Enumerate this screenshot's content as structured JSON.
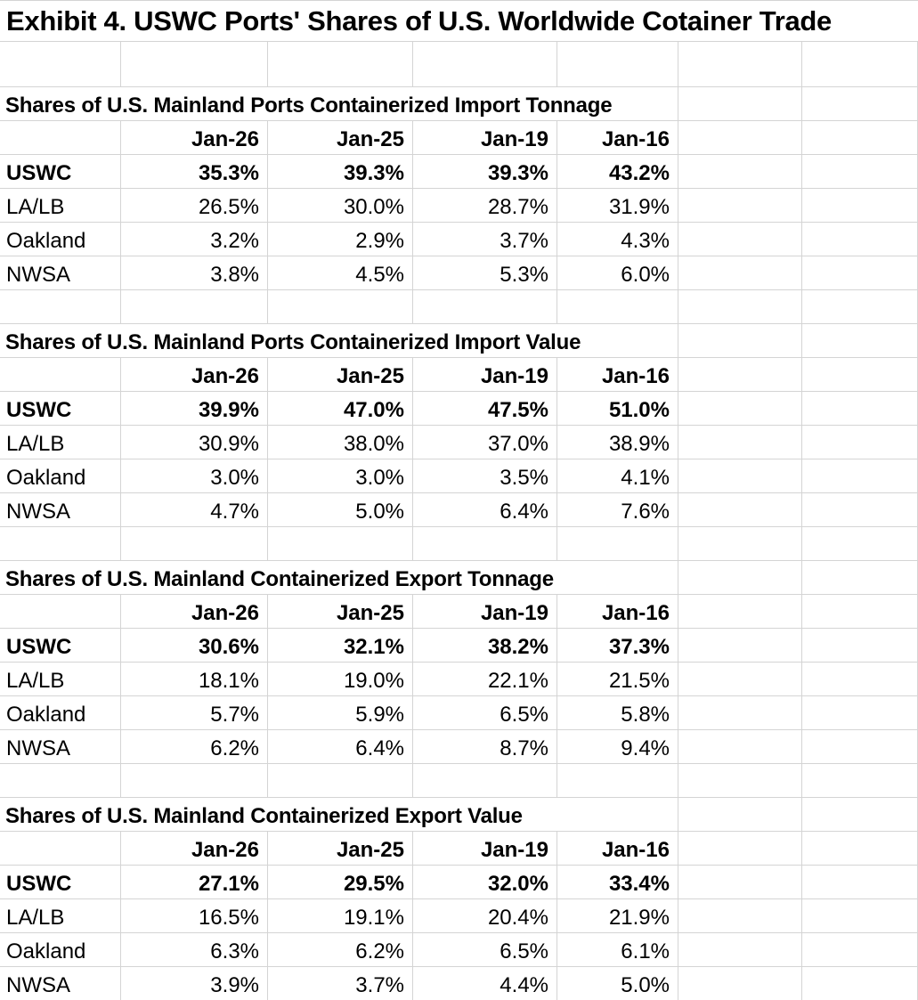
{
  "exhibit": {
    "title": "Exhibit 4. USWC Ports' Shares of U.S. Worldwide Cotainer Trade"
  },
  "columns": [
    "Jan-26",
    "Jan-25",
    "Jan-19",
    "Jan-16"
  ],
  "sections": [
    {
      "heading": "Shares of U.S. Mainland Ports Containerized Import Tonnage",
      "rows": [
        {
          "label": "USWC",
          "emphasis": true,
          "values": [
            "35.3%",
            "39.3%",
            "39.3%",
            "43.2%"
          ]
        },
        {
          "label": "LA/LB",
          "emphasis": false,
          "values": [
            "26.5%",
            "30.0%",
            "28.7%",
            "31.9%"
          ]
        },
        {
          "label": "Oakland",
          "emphasis": false,
          "values": [
            "3.2%",
            "2.9%",
            "3.7%",
            "4.3%"
          ]
        },
        {
          "label": "NWSA",
          "emphasis": false,
          "values": [
            "3.8%",
            "4.5%",
            "5.3%",
            "6.0%"
          ]
        }
      ]
    },
    {
      "heading": "Shares of U.S. Mainland Ports Containerized Import Value",
      "rows": [
        {
          "label": "USWC",
          "emphasis": true,
          "values": [
            "39.9%",
            "47.0%",
            "47.5%",
            "51.0%"
          ]
        },
        {
          "label": "LA/LB",
          "emphasis": false,
          "values": [
            "30.9%",
            "38.0%",
            "37.0%",
            "38.9%"
          ]
        },
        {
          "label": "Oakland",
          "emphasis": false,
          "values": [
            "3.0%",
            "3.0%",
            "3.5%",
            "4.1%"
          ]
        },
        {
          "label": "NWSA",
          "emphasis": false,
          "values": [
            "4.7%",
            "5.0%",
            "6.4%",
            "7.6%"
          ]
        }
      ]
    },
    {
      "heading": "Shares of U.S. Mainland Containerized Export Tonnage",
      "rows": [
        {
          "label": "USWC",
          "emphasis": true,
          "values": [
            "30.6%",
            "32.1%",
            "38.2%",
            "37.3%"
          ]
        },
        {
          "label": "LA/LB",
          "emphasis": false,
          "values": [
            "18.1%",
            "19.0%",
            "22.1%",
            "21.5%"
          ]
        },
        {
          "label": "Oakland",
          "emphasis": false,
          "values": [
            "5.7%",
            "5.9%",
            "6.5%",
            "5.8%"
          ]
        },
        {
          "label": "NWSA",
          "emphasis": false,
          "values": [
            "6.2%",
            "6.4%",
            "8.7%",
            "9.4%"
          ]
        }
      ]
    },
    {
      "heading": "Shares of U.S. Mainland Containerized Export Value",
      "rows": [
        {
          "label": "USWC",
          "emphasis": true,
          "values": [
            "27.1%",
            "29.5%",
            "32.0%",
            "33.4%"
          ]
        },
        {
          "label": "LA/LB",
          "emphasis": false,
          "values": [
            "16.5%",
            "19.1%",
            "20.4%",
            "21.9%"
          ]
        },
        {
          "label": "Oakland",
          "emphasis": false,
          "values": [
            "6.3%",
            "6.2%",
            "6.5%",
            "6.1%"
          ]
        },
        {
          "label": "NWSA",
          "emphasis": false,
          "values": [
            "3.9%",
            "3.7%",
            "4.4%",
            "5.0%"
          ]
        }
      ]
    }
  ],
  "colors": {
    "gridline": "#d4d4d4",
    "text": "#000000",
    "background": "#ffffff"
  }
}
